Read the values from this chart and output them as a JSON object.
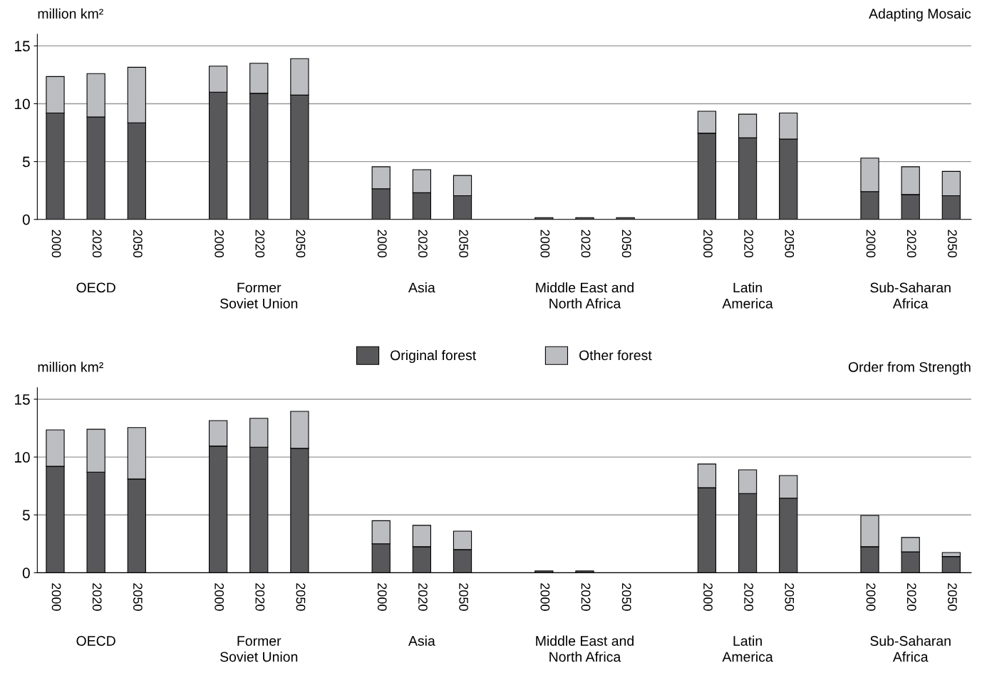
{
  "chart_data": [
    {
      "type": "bar",
      "title": "Adapting Mosaic",
      "ylabel": "million km²",
      "stacked": true,
      "grid": "y",
      "legend": "bottom",
      "categories": [
        "2000",
        "2020",
        "2050",
        "2000",
        "2020",
        "2050",
        "2000",
        "2020",
        "2050",
        "2000",
        "2020",
        "2050",
        "2000",
        "2020",
        "2050",
        "2000",
        "2020",
        "2050"
      ],
      "annotations": [
        "OECD",
        "Former\nSoviet Union",
        "Asia",
        "Middle East and\nNorth Africa",
        "Latin\nAmerica",
        "Sub-Saharan\nAfrica"
      ],
      "ylim": [
        0,
        16
      ],
      "yticks": [
        0,
        5,
        10,
        15
      ],
      "series": [
        {
          "name": "Original forest",
          "color": "#58585a",
          "values": [
            9.2,
            8.85,
            8.35,
            11.0,
            10.9,
            10.75,
            2.65,
            2.3,
            2.05,
            0.15,
            0.15,
            0.15,
            7.45,
            7.05,
            6.95,
            2.4,
            2.15,
            2.05
          ]
        },
        {
          "name": "Other forest",
          "color": "#bcbdc0",
          "values": [
            3.15,
            3.75,
            4.8,
            2.25,
            2.6,
            3.15,
            1.9,
            2.0,
            1.75,
            null,
            null,
            null,
            1.9,
            2.05,
            2.25,
            2.9,
            2.4,
            2.1
          ]
        }
      ]
    },
    {
      "type": "bar",
      "title": "Order from Strength",
      "ylabel": "million km²",
      "stacked": true,
      "grid": "y",
      "categories": [
        "2000",
        "2020",
        "2050",
        "2000",
        "2020",
        "2050",
        "2000",
        "2020",
        "2050",
        "2000",
        "2020",
        "2050",
        "2000",
        "2020",
        "2050",
        "2000",
        "2020",
        "2050"
      ],
      "annotations": [
        "OECD",
        "Former\nSoviet Union",
        "Asia",
        "Middle East and\nNorth Africa",
        "Latin\nAmerica",
        "Sub-Saharan\nAfrica"
      ],
      "ylim": [
        0,
        16
      ],
      "yticks": [
        0,
        5,
        10,
        15
      ],
      "series": [
        {
          "color": "#58585a",
          "values": [
            9.2,
            8.7,
            8.1,
            10.95,
            10.85,
            10.75,
            2.5,
            2.25,
            2.0,
            0.15,
            0.15,
            null,
            7.35,
            6.85,
            6.45,
            2.25,
            1.8,
            1.4
          ]
        },
        {
          "color": "#bcbdc0",
          "values": [
            3.15,
            3.7,
            4.45,
            2.2,
            2.5,
            3.2,
            2.0,
            1.85,
            1.6,
            null,
            null,
            null,
            2.05,
            2.05,
            1.95,
            2.7,
            1.25,
            0.35
          ]
        }
      ]
    }
  ]
}
